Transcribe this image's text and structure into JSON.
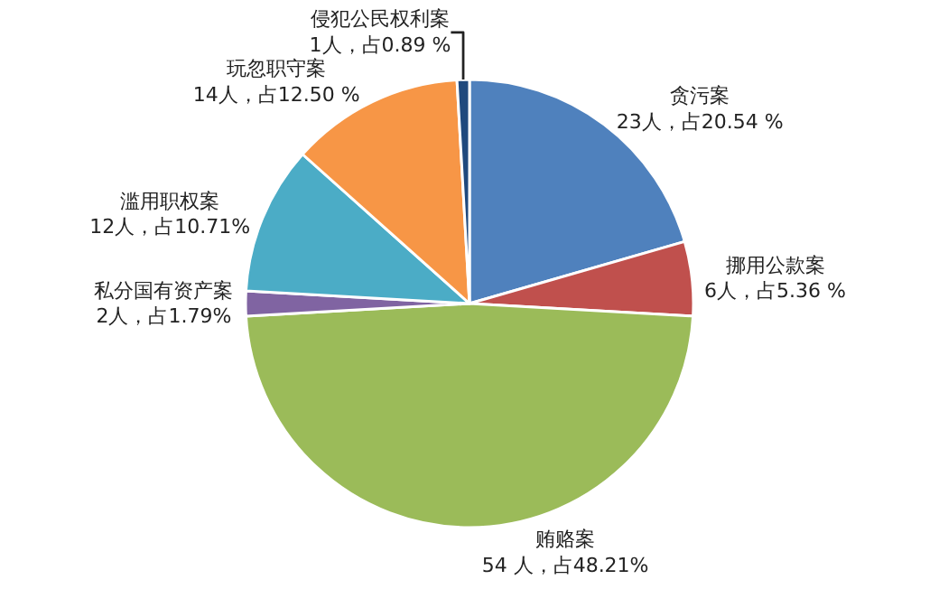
{
  "chart_data": {
    "type": "pie",
    "categories": [
      "贪污案",
      "挪用公款案",
      "贿赂案",
      "私分国有资产案",
      "滥用职权案",
      "玩忽职守案",
      "侵犯公民权利案"
    ],
    "values": [
      23,
      6,
      54,
      2,
      12,
      14,
      1
    ],
    "colors": [
      "#4f81bd",
      "#c0504d",
      "#9bbb59",
      "#8064a2",
      "#4bacc6",
      "#f79646",
      "#1f497d"
    ],
    "value_labels": [
      "23人，占20.54 %",
      "6人，占5.36 %",
      "54 人，占48.21%",
      "2人，占1.79%",
      "12人，占10.71%",
      "14人，占12.50 %",
      "1人，占0.89 %"
    ],
    "legend": false
  }
}
